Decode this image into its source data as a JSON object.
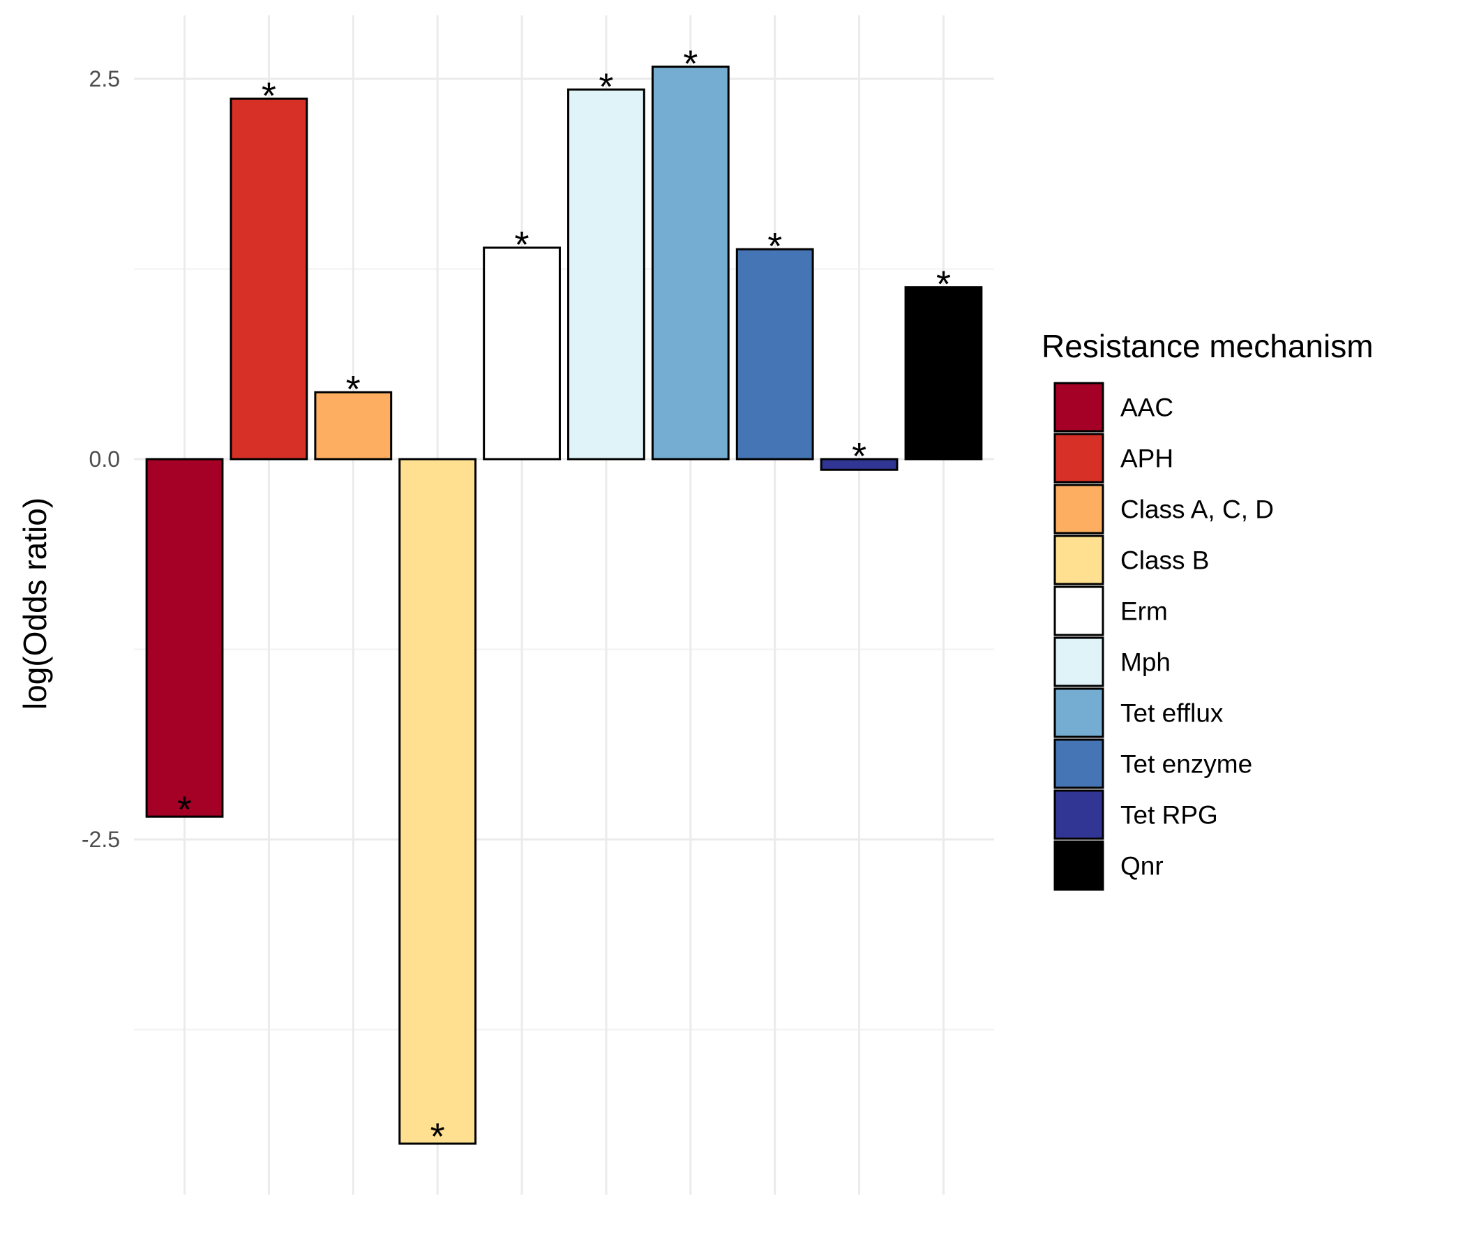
{
  "chart_data": {
    "type": "bar",
    "title": "",
    "xlabel": "",
    "ylabel": "log(Odds ratio)",
    "ylim": [
      -4.85,
      2.9
    ],
    "yticks": [
      -2.5,
      0.0,
      2.5
    ],
    "ytick_labels": [
      "-2.5",
      "0.0",
      "2.5"
    ],
    "grid": true,
    "legend": {
      "title": "Resistance mechanism",
      "placement": "right"
    },
    "categories": [
      "AAC",
      "APH",
      "Class A, C, D",
      "Class B",
      "Erm",
      "Mph",
      "Tet efflux",
      "Tet enzyme",
      "Tet RPG",
      "Qnr"
    ],
    "values": [
      -2.35,
      2.37,
      0.44,
      -4.5,
      1.39,
      2.43,
      2.58,
      1.38,
      -0.07,
      1.13
    ],
    "colors": [
      "#a50026",
      "#d73027",
      "#fdae61",
      "#fee090",
      "#ffffff",
      "#e0f3f8",
      "#74add1",
      "#4575b4",
      "#313695",
      "#000000"
    ],
    "significance": [
      "*",
      "*",
      "*",
      "*",
      "*",
      "*",
      "*",
      "*",
      "*",
      "*"
    ]
  }
}
